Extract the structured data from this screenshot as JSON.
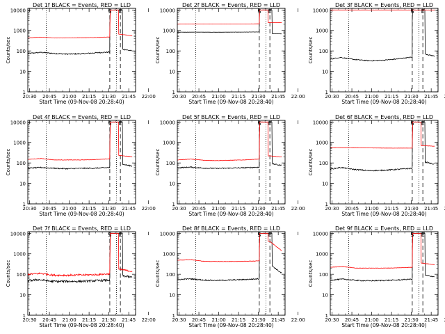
{
  "figure": {
    "x_ticks": [
      "20:30",
      "20:45",
      "21:00",
      "21:15",
      "21:30",
      "21:45",
      "22:00"
    ],
    "y_ticks": [
      "1",
      "10",
      "100",
      "1000",
      "10000"
    ],
    "ylabel": "Counts/sec",
    "xlabel": "Start Time (09-Nov-08 20:28:40)",
    "marker_S": "S",
    "marker_E": "E"
  },
  "chart_data": [
    {
      "type": "line",
      "title": "Det 1f BLACK = Events, RED = LLD",
      "x_range": [
        "20:28:40",
        "22:08"
      ],
      "ylim": [
        1,
        12000
      ],
      "y_scale": "log",
      "xlabel": "Start Time (09-Nov-08 20:28:40)",
      "ylabel": "Counts/sec",
      "series": [
        {
          "color": "#000000",
          "values": [
            [
              0,
              75
            ],
            [
              10,
              85
            ],
            [
              20,
              75
            ],
            [
              30,
              70
            ],
            [
              40,
              72
            ],
            [
              50,
              80
            ],
            [
              62,
              88
            ]
          ],
          "after": [
            [
              72,
              120
            ],
            [
              79,
              100
            ]
          ],
          "noise": 0.06,
          "spike": 1000
        },
        {
          "color": "#ff0000",
          "values": [
            [
              0,
              430
            ],
            [
              10,
              470
            ],
            [
              20,
              430
            ],
            [
              30,
              430
            ],
            [
              40,
              440
            ],
            [
              50,
              450
            ],
            [
              62,
              480
            ]
          ],
          "after": [
            [
              70,
              650
            ],
            [
              79,
              550
            ]
          ],
          "noise": 0.015
        }
      ],
      "markers": [
        {
          "label": "S",
          "x": 62
        },
        {
          "label": "E",
          "x": 70
        }
      ],
      "dashed_x": [
        62,
        70
      ],
      "dotted_x": [
        14,
        67
      ]
    },
    {
      "type": "line",
      "title": "Det 2f BLACK = Events, RED = LLD",
      "x_range": [
        "20:28:40",
        "22:08"
      ],
      "ylim": [
        1,
        12000
      ],
      "y_scale": "log",
      "xlabel": "Start Time (09-Nov-08 20:28:40)",
      "ylabel": "Counts/sec",
      "series": [
        {
          "color": "#000000",
          "values": [
            [
              0,
              820
            ],
            [
              15,
              830
            ],
            [
              30,
              820
            ],
            [
              45,
              830
            ],
            [
              62,
              840
            ]
          ],
          "after": [
            [
              72,
              700
            ],
            [
              79,
              680
            ]
          ],
          "noise": 0.01,
          "spike": 8000
        },
        {
          "color": "#ff0000",
          "values": [
            [
              0,
              2050
            ],
            [
              15,
              2050
            ],
            [
              30,
              2050
            ],
            [
              45,
              2050
            ],
            [
              62,
              2100
            ]
          ],
          "after": [
            [
              70,
              2400
            ],
            [
              79,
              2400
            ]
          ],
          "noise": 0.005
        }
      ],
      "markers": [
        {
          "label": "S",
          "x": 62
        },
        {
          "label": "E",
          "x": 70
        }
      ],
      "dashed_x": [
        62,
        70
      ],
      "dotted_x": [
        14,
        67
      ]
    },
    {
      "type": "line",
      "title": "Det 3f BLACK = Events, RED = LLD",
      "x_range": [
        "20:28:40",
        "22:08"
      ],
      "ylim": [
        1,
        12000
      ],
      "y_scale": "log",
      "xlabel": "Start Time (09-Nov-08 20:28:40)",
      "ylabel": "Counts/sec",
      "series": [
        {
          "color": "#000000",
          "values": [
            [
              0,
              40
            ],
            [
              8,
              48
            ],
            [
              18,
              38
            ],
            [
              30,
              33
            ],
            [
              40,
              35
            ],
            [
              50,
              40
            ],
            [
              62,
              50
            ]
          ],
          "after": [
            [
              72,
              70
            ],
            [
              79,
              55
            ]
          ],
          "noise": 0.05,
          "spike": 3000
        },
        {
          "color": "#ff0000",
          "values": [
            [
              0,
              10000
            ],
            [
              30,
              10000
            ],
            [
              62,
              10000
            ]
          ],
          "after": [
            [
              70,
              10000
            ],
            [
              79,
              10000
            ]
          ],
          "noise": 0.004
        }
      ],
      "markers": [
        {
          "label": "S",
          "x": 62
        },
        {
          "label": "E",
          "x": 70
        }
      ],
      "dashed_x": [
        62,
        70
      ],
      "dotted_x": [
        14,
        67
      ]
    },
    {
      "type": "line",
      "title": "Det 4f BLACK = Events, RED = LLD",
      "x_range": [
        "20:28:40",
        "22:08"
      ],
      "ylim": [
        1,
        12000
      ],
      "y_scale": "log",
      "xlabel": "Start Time (09-Nov-08 20:28:40)",
      "ylabel": "Counts/sec",
      "series": [
        {
          "color": "#000000",
          "values": [
            [
              0,
              55
            ],
            [
              10,
              60
            ],
            [
              20,
              55
            ],
            [
              30,
              52
            ],
            [
              40,
              55
            ],
            [
              50,
              55
            ],
            [
              62,
              60
            ]
          ],
          "after": [
            [
              72,
              85
            ],
            [
              79,
              70
            ]
          ],
          "noise": 0.06,
          "spike": 600
        },
        {
          "color": "#ff0000",
          "values": [
            [
              0,
              150
            ],
            [
              10,
              165
            ],
            [
              20,
              140
            ],
            [
              30,
              140
            ],
            [
              40,
              140
            ],
            [
              50,
              145
            ],
            [
              62,
              160
            ]
          ],
          "after": [
            [
              70,
              230
            ],
            [
              79,
              200
            ]
          ],
          "noise": 0.02
        }
      ],
      "markers": [
        {
          "label": "S",
          "x": 62
        },
        {
          "label": "E",
          "x": 70
        }
      ],
      "dashed_x": [
        62,
        70
      ],
      "dotted_x": [
        14,
        67
      ]
    },
    {
      "type": "line",
      "title": "Det 5f BLACK = Events, RED = LLD",
      "x_range": [
        "20:28:40",
        "22:08"
      ],
      "ylim": [
        1,
        12000
      ],
      "y_scale": "log",
      "xlabel": "Start Time (09-Nov-08 20:28:40)",
      "ylabel": "Counts/sec",
      "series": [
        {
          "color": "#000000",
          "values": [
            [
              0,
              58
            ],
            [
              10,
              62
            ],
            [
              20,
              56
            ],
            [
              30,
              54
            ],
            [
              40,
              56
            ],
            [
              50,
              58
            ],
            [
              62,
              62
            ]
          ],
          "after": [
            [
              72,
              90
            ],
            [
              79,
              75
            ]
          ],
          "noise": 0.06,
          "spike": 700
        },
        {
          "color": "#ff0000",
          "values": [
            [
              0,
              140
            ],
            [
              10,
              155
            ],
            [
              20,
              135
            ],
            [
              30,
              130
            ],
            [
              40,
              135
            ],
            [
              50,
              140
            ],
            [
              62,
              155
            ]
          ],
          "after": [
            [
              70,
              220
            ],
            [
              79,
              195
            ]
          ],
          "noise": 0.02
        }
      ],
      "markers": [
        {
          "label": "S",
          "x": 62
        },
        {
          "label": "E",
          "x": 70
        }
      ],
      "dashed_x": [
        62,
        70
      ],
      "dotted_x": [
        14,
        67
      ]
    },
    {
      "type": "line",
      "title": "Det 6f BLACK = Events, RED = LLD",
      "x_range": [
        "20:28:40",
        "22:08"
      ],
      "ylim": [
        1,
        12000
      ],
      "y_scale": "log",
      "xlabel": "Start Time (09-Nov-08 20:28:40)",
      "ylabel": "Counts/sec",
      "series": [
        {
          "color": "#000000",
          "values": [
            [
              0,
              50
            ],
            [
              8,
              60
            ],
            [
              18,
              48
            ],
            [
              30,
              42
            ],
            [
              40,
              44
            ],
            [
              50,
              48
            ],
            [
              62,
              55
            ]
          ],
          "after": [
            [
              72,
              110
            ],
            [
              79,
              85
            ]
          ],
          "noise": 0.06,
          "spike": 400
        },
        {
          "color": "#ff0000",
          "values": [
            [
              0,
              560
            ],
            [
              15,
              560
            ],
            [
              30,
              540
            ],
            [
              45,
              530
            ],
            [
              62,
              530
            ]
          ],
          "after": [
            [
              70,
              700
            ],
            [
              79,
              650
            ]
          ],
          "noise": 0.01
        }
      ],
      "markers": [
        {
          "label": "S",
          "x": 62
        },
        {
          "label": "E",
          "x": 70
        }
      ],
      "dashed_x": [
        62,
        70
      ],
      "dotted_x": [
        14,
        67
      ]
    },
    {
      "type": "line",
      "title": "Det 7f BLACK = Events, RED = LLD",
      "x_range": [
        "20:28:40",
        "22:08"
      ],
      "ylim": [
        1,
        12000
      ],
      "y_scale": "log",
      "xlabel": "Start Time (09-Nov-08 20:28:40)",
      "ylabel": "Counts/sec",
      "series": [
        {
          "color": "#000000",
          "values": [
            [
              0,
              48
            ],
            [
              8,
              55
            ],
            [
              18,
              45
            ],
            [
              30,
              45
            ],
            [
              40,
              45
            ],
            [
              50,
              48
            ],
            [
              62,
              52
            ]
          ],
          "after": [
            [
              72,
              85
            ],
            [
              79,
              70
            ]
          ],
          "noise": 0.12,
          "spike": 120
        },
        {
          "color": "#ff0000",
          "values": [
            [
              0,
              100
            ],
            [
              10,
              110
            ],
            [
              20,
              90
            ],
            [
              30,
              90
            ],
            [
              40,
              92
            ],
            [
              50,
              95
            ],
            [
              62,
              105
            ]
          ],
          "after": [
            [
              70,
              170
            ],
            [
              79,
              140
            ]
          ],
          "noise": 0.1
        }
      ],
      "markers": [
        {
          "label": "S",
          "x": 62
        },
        {
          "label": "E",
          "x": 70
        }
      ],
      "dashed_x": [
        62,
        70
      ],
      "dotted_x": [
        14,
        67
      ]
    },
    {
      "type": "line",
      "title": "Det 8f BLACK = Events, RED = LLD",
      "x_range": [
        "20:28:40",
        "22:08"
      ],
      "ylim": [
        1,
        12000
      ],
      "y_scale": "log",
      "xlabel": "Start Time (09-Nov-08 20:28:40)",
      "ylabel": "Counts/sec",
      "series": [
        {
          "color": "#000000",
          "values": [
            [
              0,
              55
            ],
            [
              10,
              60
            ],
            [
              20,
              52
            ],
            [
              30,
              50
            ],
            [
              40,
              52
            ],
            [
              50,
              55
            ],
            [
              62,
              60
            ]
          ],
          "after": [
            [
              72,
              250
            ],
            [
              79,
              110
            ]
          ],
          "noise": 0.06,
          "spike": 900
        },
        {
          "color": "#ff0000",
          "values": [
            [
              0,
              480
            ],
            [
              10,
              520
            ],
            [
              20,
              430
            ],
            [
              30,
              420
            ],
            [
              40,
              420
            ],
            [
              50,
              430
            ],
            [
              62,
              450
            ]
          ],
          "after": [
            [
              70,
              4000
            ],
            [
              79,
              1400
            ]
          ],
          "noise": 0.02
        }
      ],
      "markers": [
        {
          "label": "S",
          "x": 62
        },
        {
          "label": "E",
          "x": 70
        }
      ],
      "dashed_x": [
        62,
        70
      ],
      "dotted_x": [
        14,
        67
      ]
    },
    {
      "type": "line",
      "title": "Det 9f BLACK = Events, RED = LLD",
      "x_range": [
        "20:28:40",
        "22:08"
      ],
      "ylim": [
        1,
        12000
      ],
      "y_scale": "log",
      "xlabel": "Start Time (09-Nov-08 20:28:40)",
      "ylabel": "Counts/sec",
      "series": [
        {
          "color": "#000000",
          "values": [
            [
              0,
              52
            ],
            [
              10,
              58
            ],
            [
              20,
              50
            ],
            [
              30,
              48
            ],
            [
              40,
              50
            ],
            [
              50,
              52
            ],
            [
              62,
              58
            ]
          ],
          "after": [
            [
              72,
              90
            ],
            [
              79,
              75
            ]
          ],
          "noise": 0.06,
          "spike": 800
        },
        {
          "color": "#ff0000",
          "values": [
            [
              0,
              220
            ],
            [
              10,
              235
            ],
            [
              20,
              200
            ],
            [
              30,
              200
            ],
            [
              40,
              200
            ],
            [
              50,
              205
            ],
            [
              62,
              220
            ]
          ],
          "after": [
            [
              70,
              350
            ],
            [
              79,
              290
            ]
          ],
          "noise": 0.02
        }
      ],
      "markers": [
        {
          "label": "S",
          "x": 62
        },
        {
          "label": "E",
          "x": 70
        }
      ],
      "dashed_x": [
        62,
        70
      ],
      "dotted_x": [
        14,
        67
      ]
    }
  ]
}
